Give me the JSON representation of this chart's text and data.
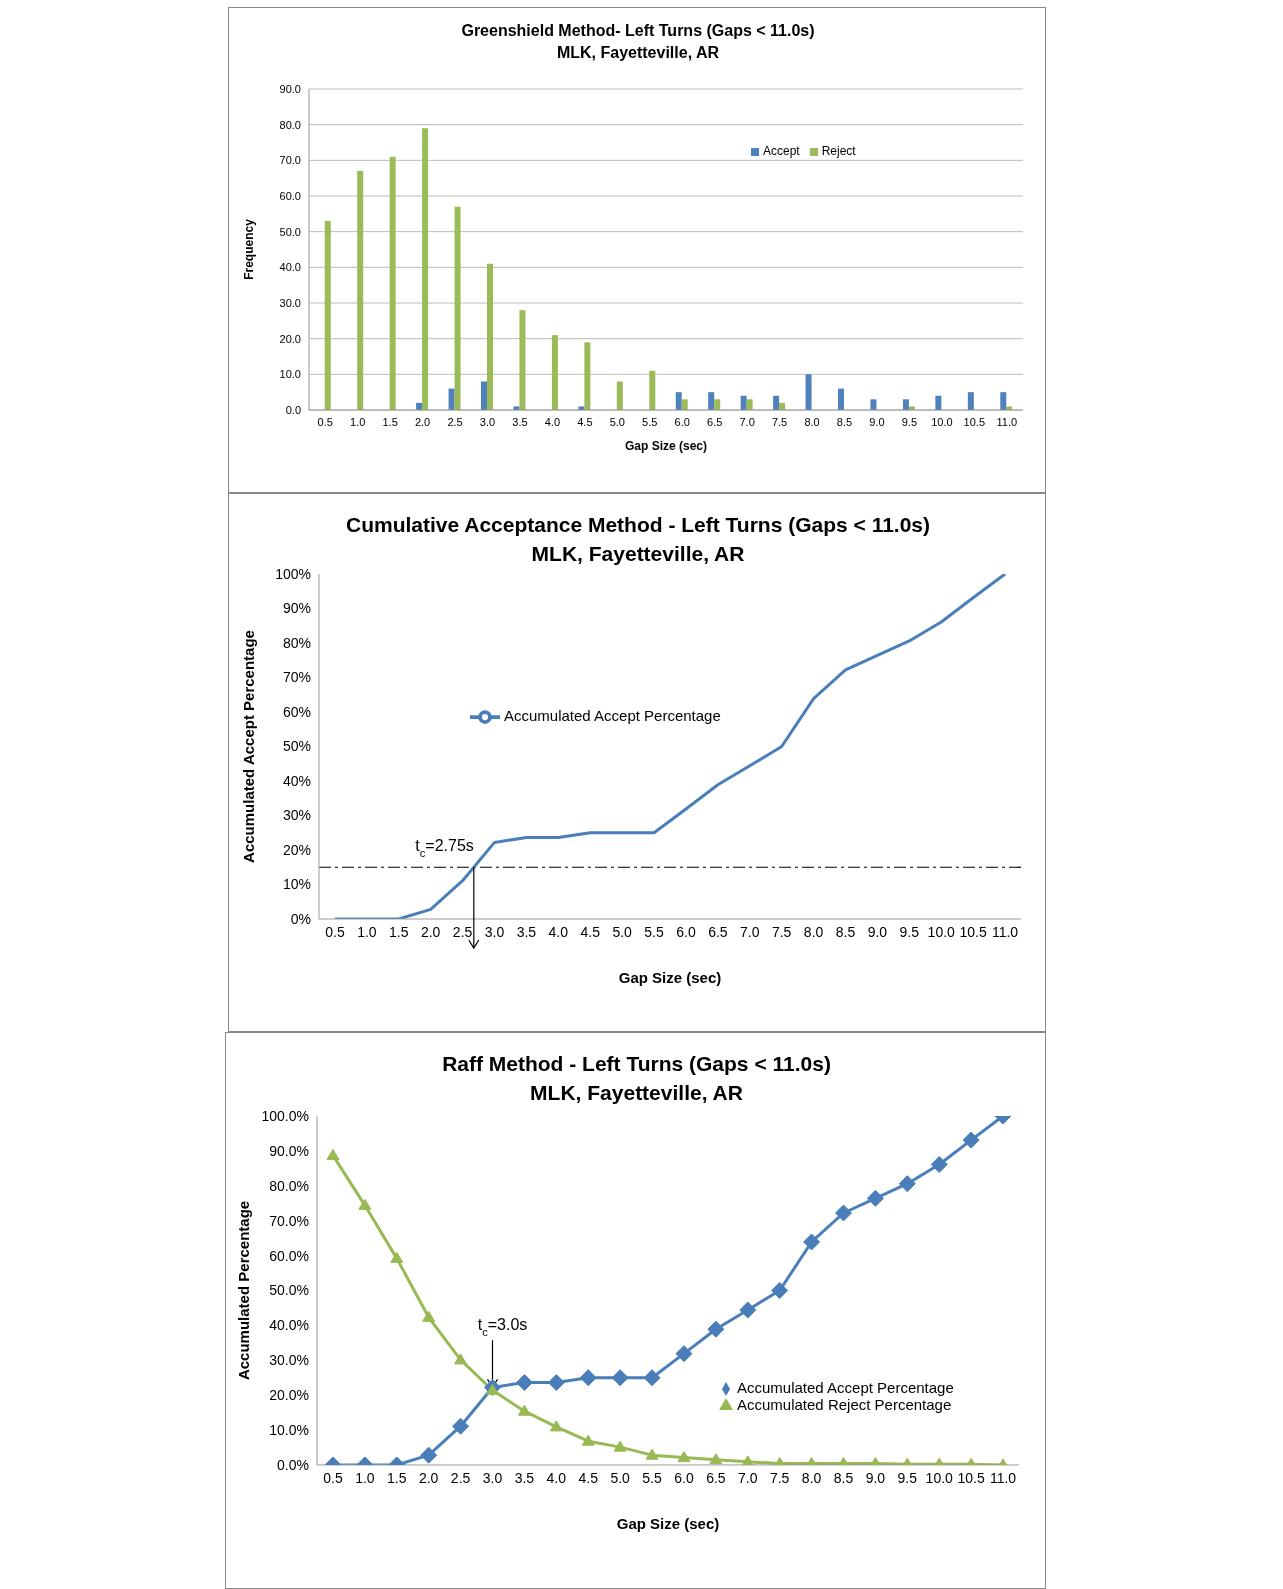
{
  "chart_data": [
    {
      "type": "bar",
      "title": "Greenshield Method- Left Turns (Gaps < 11.0s)",
      "subtitle": "MLK, Fayetteville, AR",
      "xlabel": "Gap Size (sec)",
      "ylabel": "Frequency",
      "categories": [
        "0.5",
        "1.0",
        "1.5",
        "2.0",
        "2.5",
        "3.0",
        "3.5",
        "4.0",
        "4.5",
        "5.0",
        "5.5",
        "6.0",
        "6.5",
        "7.0",
        "7.5",
        "8.0",
        "8.5",
        "9.0",
        "9.5",
        "10.0",
        "10.5",
        "11.0"
      ],
      "series": [
        {
          "name": "Accept",
          "color": "#4f81bd",
          "values": [
            0,
            0,
            0,
            2,
            6,
            8,
            1,
            0,
            1,
            0,
            0,
            5,
            5,
            4,
            4,
            10,
            6,
            3,
            3,
            4,
            5,
            5
          ]
        },
        {
          "name": "Reject",
          "color": "#9bbb59",
          "values": [
            53,
            67,
            71,
            79,
            57,
            41,
            28,
            21,
            19,
            8,
            11,
            3,
            3,
            3,
            2,
            0,
            0,
            0,
            1,
            0,
            0,
            1
          ]
        }
      ],
      "ylim": [
        0,
        90
      ],
      "yticks": [
        {
          "value": 0,
          "label": "0.0"
        },
        {
          "value": 10,
          "label": "10.0"
        },
        {
          "value": 20,
          "label": "20.0"
        },
        {
          "value": 30,
          "label": "30.0"
        },
        {
          "value": 40,
          "label": "40.0"
        },
        {
          "value": 50,
          "label": "50.0"
        },
        {
          "value": 60,
          "label": "60.0"
        },
        {
          "value": 70,
          "label": "70.0"
        },
        {
          "value": 80,
          "label": "80.0"
        },
        {
          "value": 90,
          "label": "90.0"
        }
      ],
      "grid": "y",
      "legend": "top right"
    },
    {
      "type": "line",
      "title": "Cumulative Acceptance Method - Left Turns (Gaps < 11.0s)",
      "subtitle": "MLK, Fayetteville, AR",
      "xlabel": "Gap Size (sec)",
      "ylabel": "Accumulated Accept Percentage",
      "categories": [
        "0.5",
        "1.0",
        "1.5",
        "2.0",
        "2.5",
        "3.0",
        "3.5",
        "4.0",
        "4.5",
        "5.0",
        "5.5",
        "6.0",
        "6.5",
        "7.0",
        "7.5",
        "8.0",
        "8.5",
        "9.0",
        "9.5",
        "10.0",
        "10.5",
        "11.0"
      ],
      "series": [
        {
          "name": "Accumulated Accept Percentage",
          "color": "#4a7ebb",
          "values": [
            0,
            0,
            0,
            2.8,
            11.1,
            22.2,
            23.6,
            23.6,
            25.0,
            25.0,
            25.0,
            31.9,
            38.9,
            44.4,
            50.0,
            63.9,
            72.2,
            76.4,
            80.6,
            86.1,
            93.1,
            100
          ]
        }
      ],
      "ylim": [
        0,
        100
      ],
      "yticks": [
        {
          "value": 0,
          "label": "0%"
        },
        {
          "value": 10,
          "label": "10%"
        },
        {
          "value": 20,
          "label": "20%"
        },
        {
          "value": 30,
          "label": "30%"
        },
        {
          "value": 40,
          "label": "40%"
        },
        {
          "value": 50,
          "label": "50%"
        },
        {
          "value": 60,
          "label": "60%"
        },
        {
          "value": 70,
          "label": "70%"
        },
        {
          "value": 80,
          "label": "80%"
        },
        {
          "value": 90,
          "label": "90%"
        },
        {
          "value": 100,
          "label": "100%"
        }
      ],
      "ref_lines": [
        {
          "axis": "y",
          "value": 15,
          "color": "#000000",
          "line_style": "dashed"
        }
      ],
      "annotations": [
        {
          "text": "t$_{c}$=2.75s",
          "y": 15
        }
      ],
      "legend": "top",
      "marker": "none"
    },
    {
      "type": "line",
      "title": "Raff Method - Left Turns (Gaps < 11.0s)",
      "subtitle": "MLK, Fayetteville, AR",
      "xlabel": "Gap Size (sec)",
      "ylabel": "Accumulated Percentage",
      "categories": [
        "0.5",
        "1.0",
        "1.5",
        "2.0",
        "2.5",
        "3.0",
        "3.5",
        "4.0",
        "4.5",
        "5.0",
        "5.5",
        "6.0",
        "6.5",
        "7.0",
        "7.5",
        "8.0",
        "8.5",
        "9.0",
        "9.5",
        "10.0",
        "10.5",
        "11.0"
      ],
      "series": [
        {
          "name": "Accumulated Accept Percentage",
          "color": "#4a7ebb",
          "marker": "diamond",
          "values": [
            0,
            0,
            0,
            2.8,
            11.1,
            22.2,
            23.6,
            23.6,
            25.0,
            25.0,
            25.0,
            31.9,
            38.9,
            44.4,
            50.0,
            63.9,
            72.2,
            76.4,
            80.6,
            86.1,
            93.1,
            100
          ]
        },
        {
          "name": "Accumulated Reject Percentage",
          "color": "#98b954",
          "marker": "triangle",
          "values": [
            88.7,
            74.4,
            59.2,
            42.3,
            30.1,
            21.4,
            15.4,
            10.9,
            6.8,
            5.1,
            2.8,
            2.1,
            1.5,
            0.9,
            0.4,
            0.4,
            0.4,
            0.4,
            0.2,
            0.2,
            0.2,
            0
          ]
        }
      ],
      "ylim": [
        0,
        100
      ],
      "yticks": [
        {
          "value": 0,
          "label": "0.0%"
        },
        {
          "value": 10,
          "label": "10.0%"
        },
        {
          "value": 20,
          "label": "20.0%"
        },
        {
          "value": 30,
          "label": "30.0%"
        },
        {
          "value": 40,
          "label": "40.0%"
        },
        {
          "value": 50,
          "label": "50.0%"
        },
        {
          "value": 60,
          "label": "60.0%"
        },
        {
          "value": 70,
          "label": "70.0%"
        },
        {
          "value": 80,
          "label": "80.0%"
        },
        {
          "value": 90,
          "label": "90.0%"
        },
        {
          "value": 100,
          "label": "100.0%"
        }
      ],
      "annotations": [
        {
          "text": "t$_{c}$=3.0s",
          "x": "3.0",
          "y": 21.4
        }
      ],
      "legend": "bottom right"
    }
  ]
}
